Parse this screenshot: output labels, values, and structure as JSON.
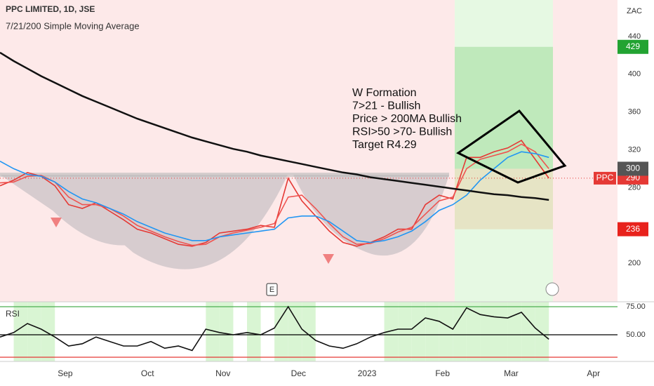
{
  "chart_data": [
    {
      "type": "line",
      "title": "PPC LIMITED, 1D, JSE",
      "subtitle": "7/21/200 Simple Moving Average",
      "unit": "ZAC",
      "x": [
        0,
        4,
        8,
        12,
        16,
        20,
        24,
        28,
        32,
        36,
        40,
        44,
        48,
        52,
        56,
        60,
        64,
        68,
        72,
        76,
        80,
        84,
        88,
        92,
        96,
        100,
        104,
        108,
        112,
        116,
        120,
        124,
        128,
        132,
        136,
        140,
        144,
        148,
        152,
        156,
        160
      ],
      "xlim": [
        0,
        180
      ],
      "xticks": [
        {
          "value": 19,
          "label": "Sep"
        },
        {
          "value": 43,
          "label": "Oct"
        },
        {
          "value": 65,
          "label": "Nov"
        },
        {
          "value": 87,
          "label": "Dec"
        },
        {
          "value": 107,
          "label": "2023"
        },
        {
          "value": 129,
          "label": "Feb"
        },
        {
          "value": 149,
          "label": "Mar"
        },
        {
          "value": 173,
          "label": "Apr"
        }
      ],
      "ylim": [
        159.2,
        478.6
      ],
      "yticks": [
        200,
        280,
        320,
        360,
        400,
        440
      ],
      "series": [
        {
          "name": "PPC",
          "color": "#e53935",
          "values": [
            282,
            288,
            296,
            292,
            282,
            262,
            258,
            264,
            255,
            246,
            236,
            232,
            226,
            220,
            218,
            222,
            232,
            234,
            236,
            240,
            238,
            290,
            266,
            250,
            234,
            222,
            218,
            222,
            228,
            236,
            236,
            262,
            272,
            268,
            312,
            312,
            318,
            322,
            330,
            310,
            290
          ]
        },
        {
          "color": "#ef5350",
          "values": [
            285,
            286,
            292,
            293,
            286,
            270,
            262,
            262,
            258,
            250,
            240,
            234,
            228,
            223,
            219,
            220,
            228,
            232,
            235,
            238,
            242,
            270,
            272,
            258,
            242,
            228,
            220,
            221,
            226,
            233,
            238,
            252,
            266,
            270,
            300,
            310,
            314,
            318,
            326,
            318,
            300
          ]
        },
        {
          "color": "#2196f3",
          "values": [
            308,
            300,
            294,
            292,
            286,
            276,
            268,
            264,
            258,
            252,
            244,
            238,
            232,
            228,
            224,
            224,
            228,
            230,
            232,
            234,
            236,
            248,
            250,
            250,
            244,
            234,
            224,
            222,
            224,
            228,
            234,
            244,
            256,
            262,
            272,
            288,
            300,
            312,
            318,
            316,
            312
          ]
        },
        {
          "color": "#111111",
          "values": [
            423,
            414,
            406,
            398,
            391,
            384,
            377,
            371,
            365,
            359,
            353,
            348,
            343,
            338,
            333,
            329,
            325,
            321,
            318,
            314,
            311,
            308,
            305,
            302,
            299,
            296,
            294,
            291,
            289,
            287,
            285,
            283,
            281,
            279,
            277,
            275,
            273,
            272,
            270,
            269,
            267
          ]
        }
      ],
      "price_labels": [
        {
          "value": 429,
          "label": "429",
          "color": "#22a332"
        },
        {
          "value": 300,
          "label": "300",
          "color": "#555555"
        },
        {
          "value": 236,
          "label": "236",
          "color": "#e8221c"
        }
      ],
      "annotations": [
        "W Formation",
        "7>21 - Bullish",
        "Price > 200MA Bullish",
        "RSI>50 >70- Bullish",
        "Target R4.29"
      ],
      "event_marker": "E"
    },
    {
      "type": "line",
      "title": "RSI",
      "x": [
        0,
        4,
        8,
        12,
        16,
        20,
        24,
        28,
        32,
        36,
        40,
        44,
        48,
        52,
        56,
        60,
        64,
        68,
        72,
        76,
        80,
        84,
        88,
        92,
        96,
        100,
        104,
        108,
        112,
        116,
        120,
        124,
        128,
        132,
        136,
        140,
        144,
        148,
        152,
        156,
        160
      ],
      "xlim": [
        0,
        180
      ],
      "ylim": [
        26.25,
        79.4
      ],
      "yticks": [
        {
          "value": 75,
          "label": "75.00"
        },
        {
          "value": 50,
          "label": "50.00"
        }
      ],
      "levels": [
        {
          "value": 75,
          "color": "#4caf50"
        },
        {
          "value": 50,
          "color": "#000000"
        },
        {
          "value": 30,
          "color": "#e53935"
        }
      ],
      "series": [
        {
          "color": "#111111",
          "values": [
            48,
            52,
            60,
            55,
            48,
            40,
            42,
            48,
            44,
            40,
            40,
            44,
            38,
            40,
            36,
            55,
            52,
            50,
            52,
            50,
            56,
            75,
            55,
            45,
            40,
            38,
            42,
            48,
            52,
            55,
            55,
            65,
            62,
            55,
            74,
            68,
            66,
            65,
            70,
            56,
            46
          ]
        }
      ]
    }
  ]
}
